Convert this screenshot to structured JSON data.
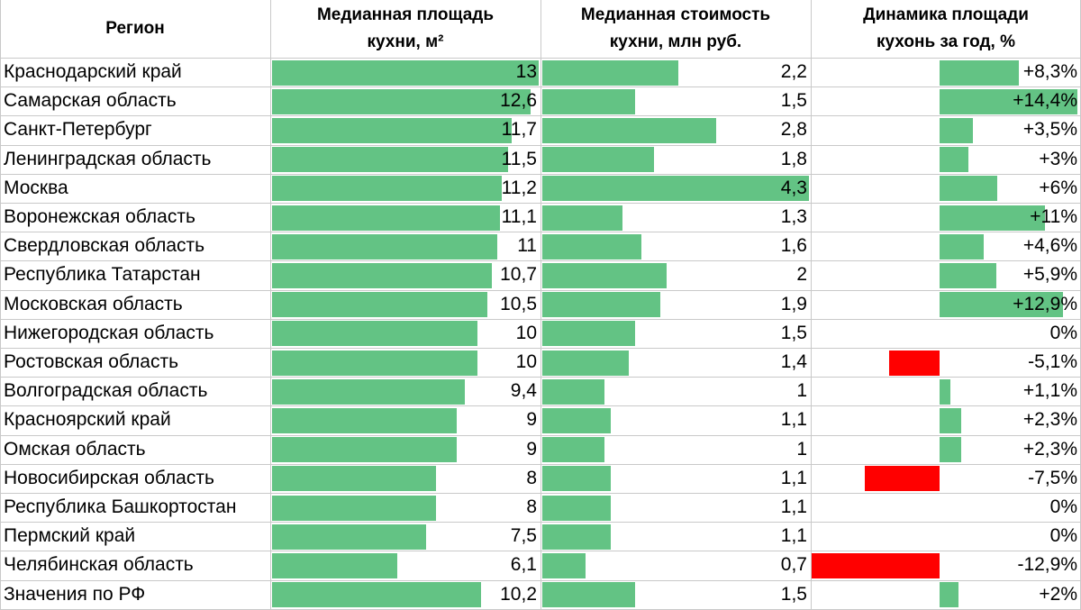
{
  "colors": {
    "positive": "#63c384",
    "negative": "#ff0000",
    "grid": "#c9c9c9"
  },
  "headers": {
    "region": "Регион",
    "area_line1": "Медианная площадь",
    "area_line2": "кухни, м²",
    "cost_line1": "Медианная стоимость",
    "cost_line2": "кухни, млн руб.",
    "dyn_line1": "Динамика площади",
    "dyn_line2": "кухонь за год, %"
  },
  "chart_data": {
    "type": "table",
    "columns": [
      "Регион",
      "Медианная площадь кухни, м²",
      "Медианная стоимость кухни, млн руб.",
      "Динамика площади кухонь за год, %"
    ],
    "rows": [
      {
        "region": "Краснодарский край",
        "area": "13",
        "cost": "2,2",
        "dynamics": "+8,3%",
        "area_num": 13,
        "cost_num": 2.2,
        "dyn_num": 8.3
      },
      {
        "region": "Самарская область",
        "area": "12,6",
        "cost": "1,5",
        "dynamics": "+14,4%",
        "area_num": 12.6,
        "cost_num": 1.5,
        "dyn_num": 14.4
      },
      {
        "region": "Санкт-Петербург",
        "area": "11,7",
        "cost": "2,8",
        "dynamics": "+3,5%",
        "area_num": 11.7,
        "cost_num": 2.8,
        "dyn_num": 3.5
      },
      {
        "region": "Ленинградская область",
        "area": "11,5",
        "cost": "1,8",
        "dynamics": "+3%",
        "area_num": 11.5,
        "cost_num": 1.8,
        "dyn_num": 3
      },
      {
        "region": "Москва",
        "area": "11,2",
        "cost": "4,3",
        "dynamics": "+6%",
        "area_num": 11.2,
        "cost_num": 4.3,
        "dyn_num": 6
      },
      {
        "region": "Воронежская область",
        "area": "11,1",
        "cost": "1,3",
        "dynamics": "+11%",
        "area_num": 11.1,
        "cost_num": 1.3,
        "dyn_num": 11
      },
      {
        "region": "Свердловская область",
        "area": "11",
        "cost": "1,6",
        "dynamics": "+4,6%",
        "area_num": 11,
        "cost_num": 1.6,
        "dyn_num": 4.6
      },
      {
        "region": "Республика Татарстан",
        "area": "10,7",
        "cost": "2",
        "dynamics": "+5,9%",
        "area_num": 10.7,
        "cost_num": 2,
        "dyn_num": 5.9
      },
      {
        "region": "Московская область",
        "area": "10,5",
        "cost": "1,9",
        "dynamics": "+12,9%",
        "area_num": 10.5,
        "cost_num": 1.9,
        "dyn_num": 12.9
      },
      {
        "region": "Нижегородская область",
        "area": "10",
        "cost": "1,5",
        "dynamics": "0%",
        "area_num": 10,
        "cost_num": 1.5,
        "dyn_num": 0
      },
      {
        "region": "Ростовская область",
        "area": "10",
        "cost": "1,4",
        "dynamics": "-5,1%",
        "area_num": 10,
        "cost_num": 1.4,
        "dyn_num": -5.1
      },
      {
        "region": "Волгоградская область",
        "area": "9,4",
        "cost": "1",
        "dynamics": "+1,1%",
        "area_num": 9.4,
        "cost_num": 1,
        "dyn_num": 1.1
      },
      {
        "region": "Красноярский край",
        "area": "9",
        "cost": "1,1",
        "dynamics": "+2,3%",
        "area_num": 9,
        "cost_num": 1.1,
        "dyn_num": 2.3
      },
      {
        "region": "Омская область",
        "area": "9",
        "cost": "1",
        "dynamics": "+2,3%",
        "area_num": 9,
        "cost_num": 1,
        "dyn_num": 2.3
      },
      {
        "region": "Новосибирская область",
        "area": "8",
        "cost": "1,1",
        "dynamics": "-7,5%",
        "area_num": 8,
        "cost_num": 1.1,
        "dyn_num": -7.5
      },
      {
        "region": "Республика Башкортостан",
        "area": "8",
        "cost": "1,1",
        "dynamics": "0%",
        "area_num": 8,
        "cost_num": 1.1,
        "dyn_num": 0
      },
      {
        "region": "Пермский край",
        "area": "7,5",
        "cost": "1,1",
        "dynamics": "0%",
        "area_num": 7.5,
        "cost_num": 1.1,
        "dyn_num": 0
      },
      {
        "region": "Челябинская область",
        "area": "6,1",
        "cost": "0,7",
        "dynamics": "-12,9%",
        "area_num": 6.1,
        "cost_num": 0.7,
        "dyn_num": -12.9
      },
      {
        "region": "Значения по РФ",
        "area": "10,2",
        "cost": "1,5",
        "dynamics": "+2%",
        "area_num": 10.2,
        "cost_num": 1.5,
        "dyn_num": 2
      }
    ],
    "area_scale_max": 13,
    "cost_scale_max": 4.3,
    "dyn_scale_max": 14.4
  }
}
